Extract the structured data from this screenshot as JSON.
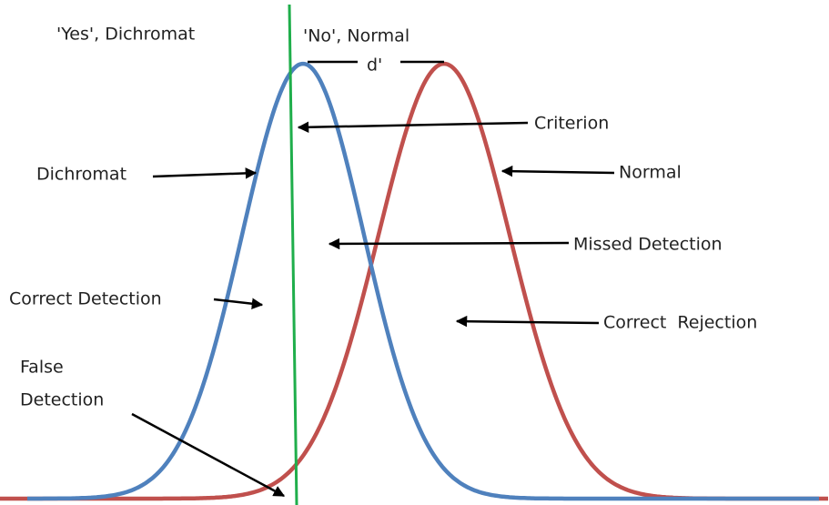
{
  "labels": {
    "yes_dichromat": "'Yes', Dichromat",
    "no_normal": "'No', Normal",
    "d_prime": "d'",
    "criterion": "Criterion",
    "dichromat": "Dichromat",
    "normal": "Normal",
    "missed_detection": "Missed Detection",
    "correct_detection": "Correct Detection",
    "correct_rejection": "Correct  Rejection",
    "false_detection": [
      "False",
      "Detection"
    ]
  }
}
